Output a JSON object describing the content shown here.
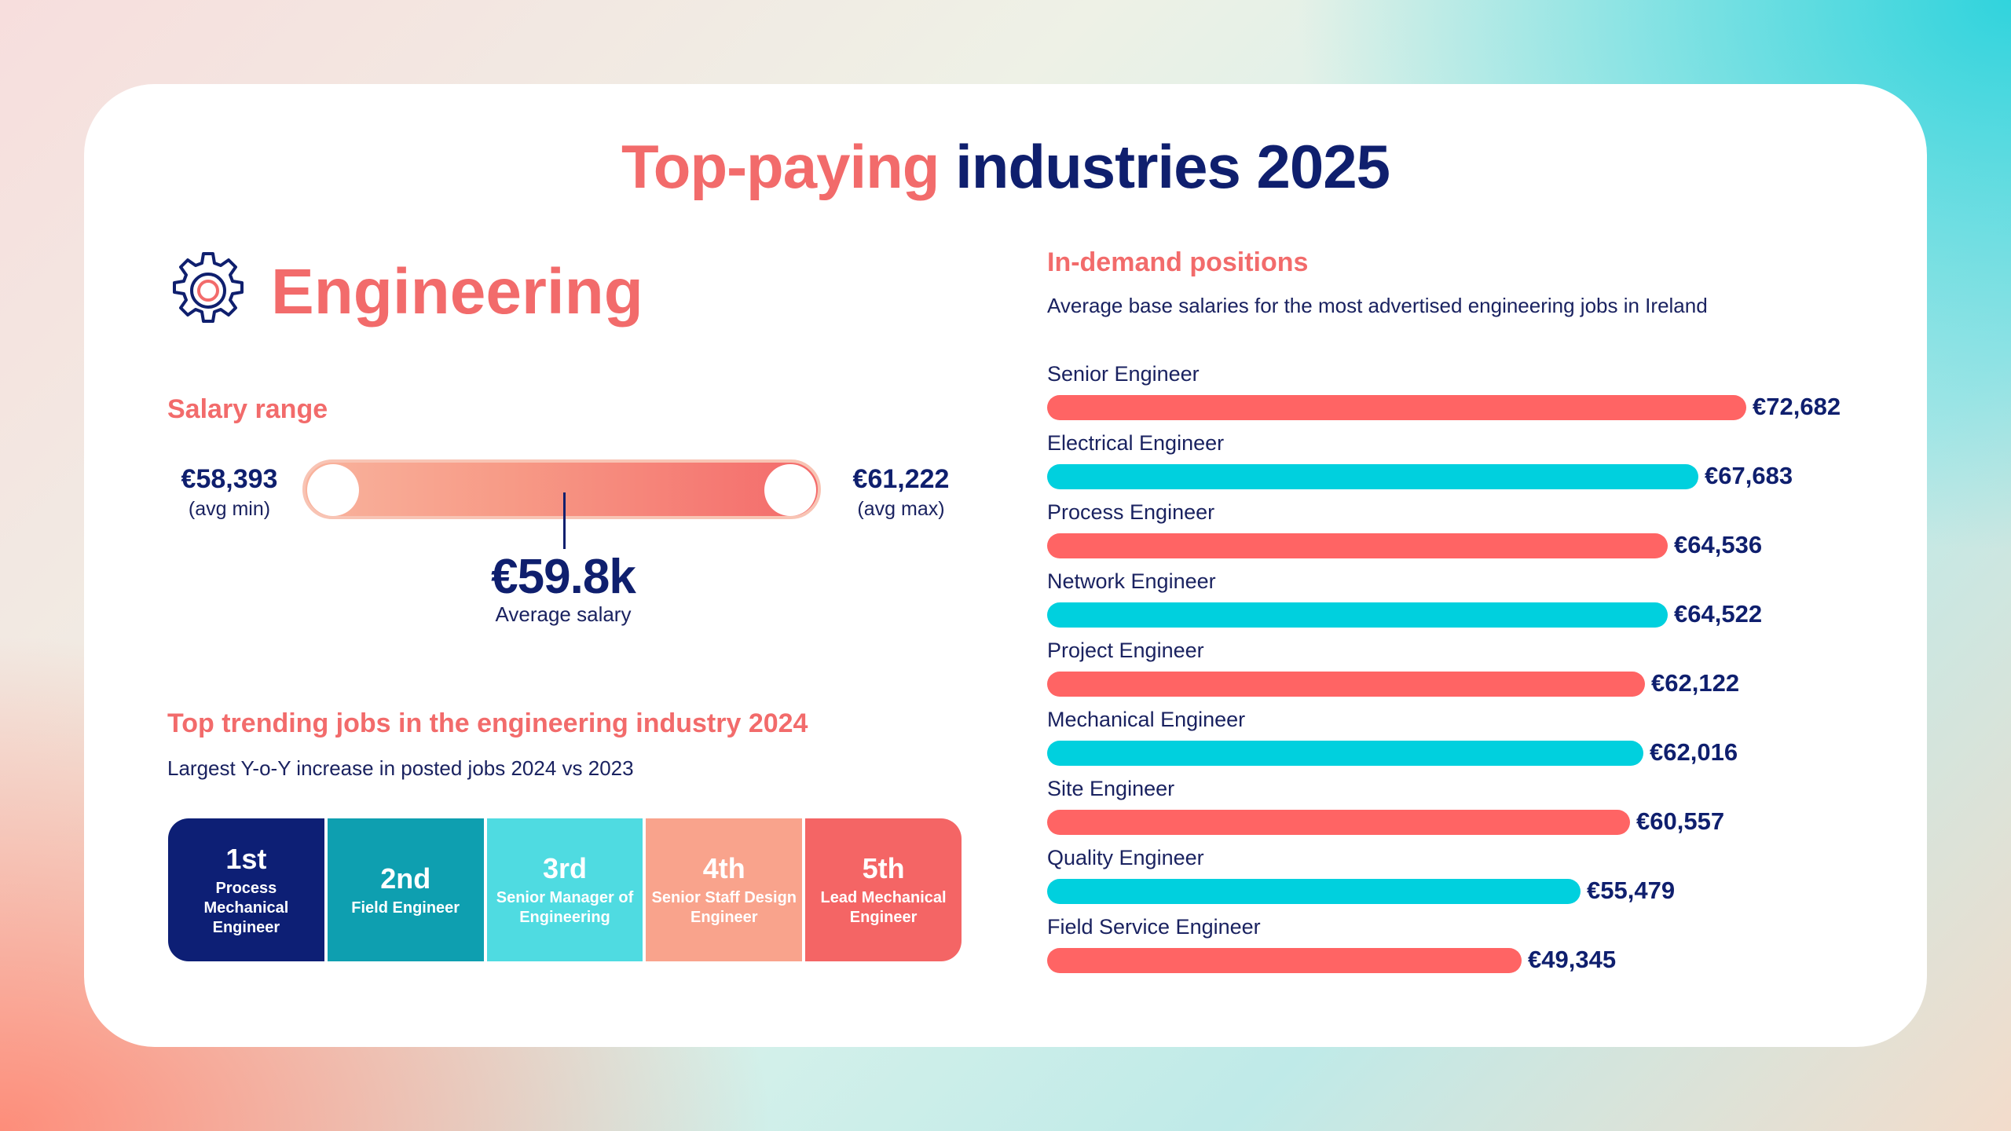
{
  "title": {
    "part1": "Top-paying",
    "part2": "industries 2025"
  },
  "industry": {
    "name": "Engineering",
    "icon": "gear-icon"
  },
  "salary_range": {
    "heading": "Salary range",
    "min_value": "€58,393",
    "min_caption": "(avg min)",
    "max_value": "€61,222",
    "max_caption": "(avg max)",
    "average_value": "€59.8k",
    "average_caption": "Average salary"
  },
  "trending": {
    "heading": "Top trending jobs in the engineering industry 2024",
    "subheading": "Largest Y-o-Y increase in posted jobs 2024 vs 2023",
    "items": [
      {
        "rank": "1st",
        "job": "Process Mechanical Engineer",
        "color": "#0d1f75"
      },
      {
        "rank": "2nd",
        "job": "Field Engineer",
        "color": "#0e9fb0"
      },
      {
        "rank": "3rd",
        "job": "Senior Manager of Engineering",
        "color": "#4fdbe1"
      },
      {
        "rank": "4th",
        "job": "Senior Staff Design Engineer",
        "color": "#f9a38c"
      },
      {
        "rank": "5th",
        "job": "Lead Mechanical Engineer",
        "color": "#f46565"
      }
    ]
  },
  "colors": {
    "coral": "#f26b6b",
    "navy": "#0f1f6e",
    "cyan": "#00d0de"
  },
  "chart_data": {
    "type": "bar",
    "title": "In-demand positions",
    "subtitle": "Average base salaries for the most advertised engineering jobs in Ireland",
    "orientation": "horizontal",
    "categories": [
      "Senior Engineer",
      "Electrical Engineer",
      "Process Engineer",
      "Network Engineer",
      "Project Engineer",
      "Mechanical Engineer",
      "Site Engineer",
      "Quality Engineer",
      "Field Service Engineer"
    ],
    "values": [
      72682,
      67683,
      64536,
      64522,
      62122,
      62016,
      60557,
      55479,
      49345
    ],
    "value_labels": [
      "€72,682",
      "€67,683",
      "€64,536",
      "€64,522",
      "€62,122",
      "€62,016",
      "€60,557",
      "€55,479",
      "€49,345"
    ],
    "bar_colors": [
      "#ff6464",
      "#00d0de",
      "#ff6464",
      "#00d0de",
      "#ff6464",
      "#00d0de",
      "#ff6464",
      "#00d0de",
      "#ff6464"
    ],
    "xlabel": "",
    "ylabel": "",
    "grid": false,
    "legend": false
  }
}
